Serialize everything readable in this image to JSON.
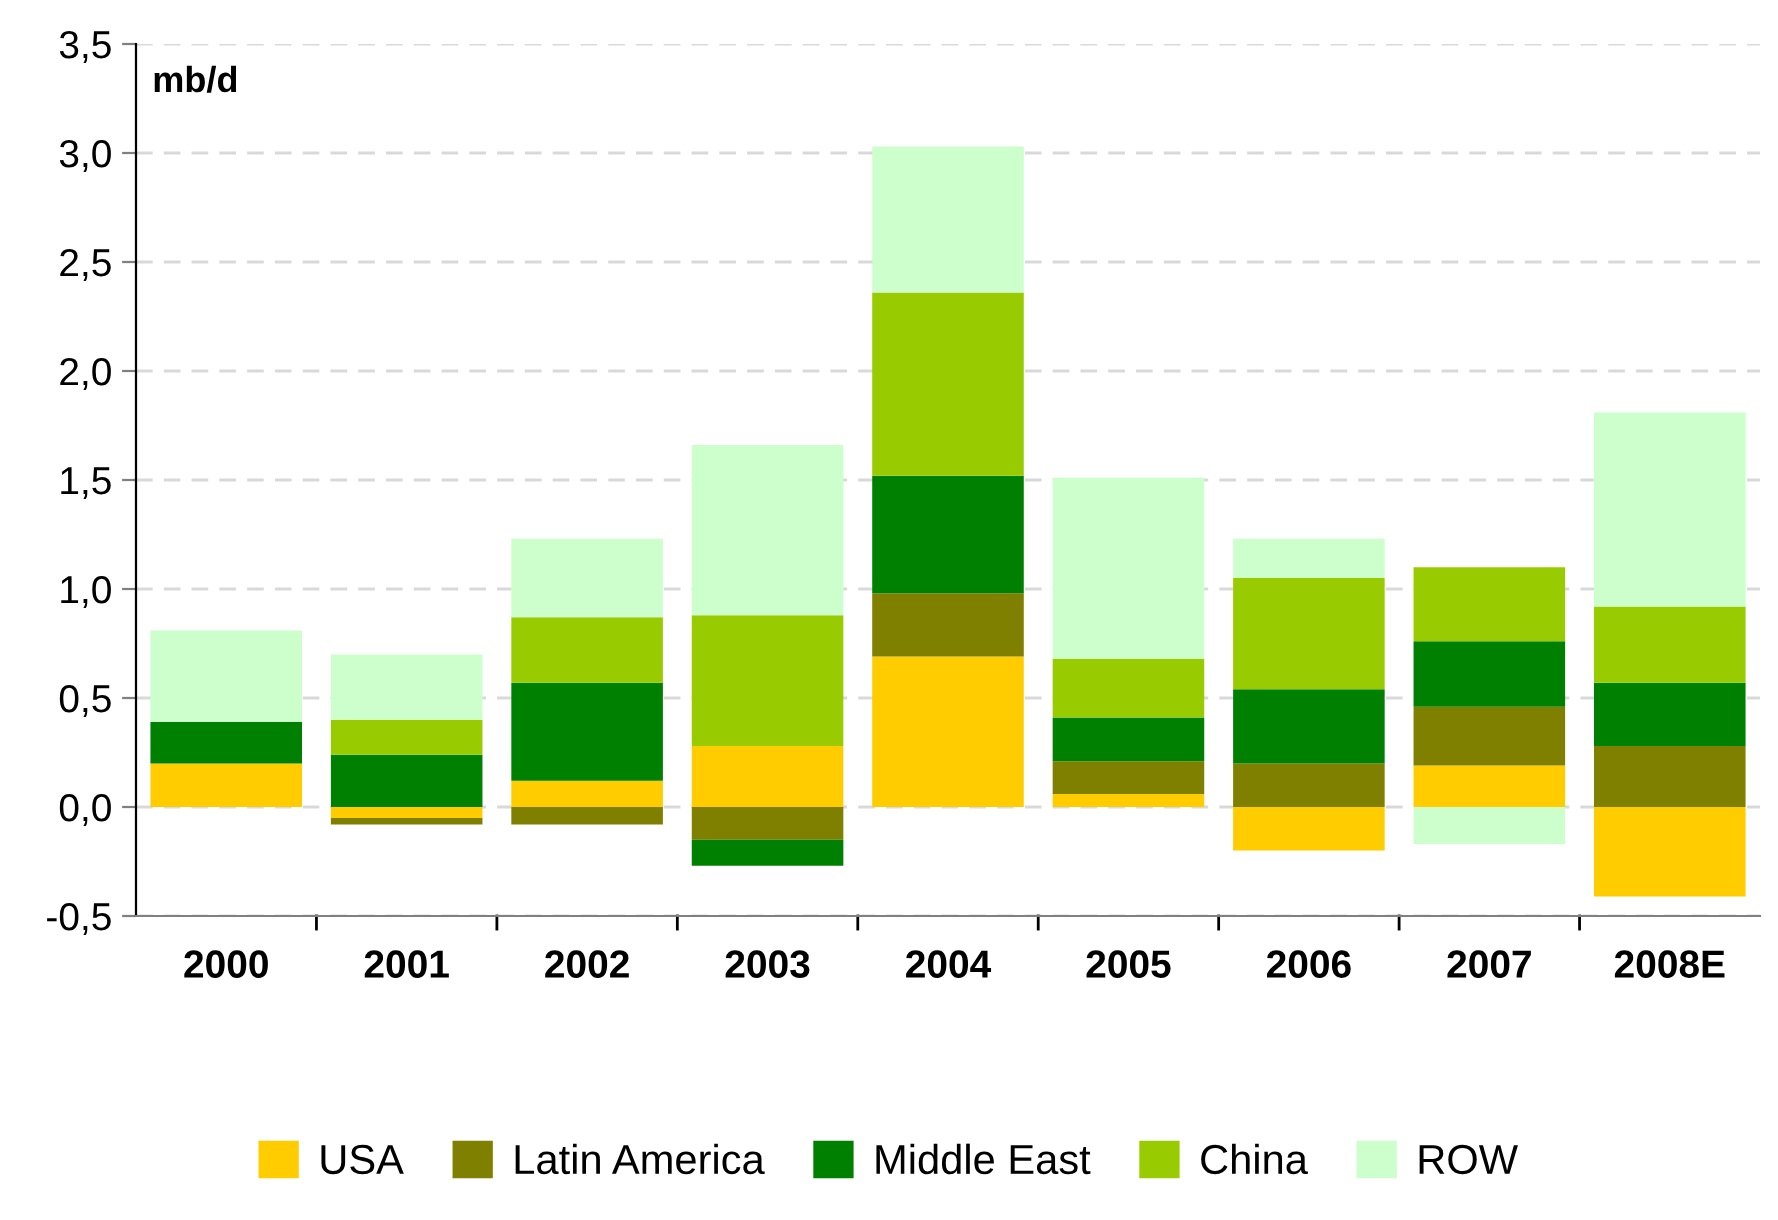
{
  "chart_data": {
    "type": "bar",
    "stacked": true,
    "ylabel": "mb/d",
    "categories": [
      "2000",
      "2001",
      "2002",
      "2003",
      "2004",
      "2005",
      "2006",
      "2007",
      "2008E"
    ],
    "series": [
      {
        "name": "USA",
        "color": "#ffcc00",
        "values": [
          0.2,
          -0.05,
          0.12,
          0.28,
          0.69,
          0.06,
          -0.2,
          0.19,
          -0.41
        ]
      },
      {
        "name": "Latin America",
        "color": "#808000",
        "values": [
          0,
          -0.03,
          -0.08,
          -0.15,
          0.29,
          0.15,
          0.2,
          0.27,
          0.28
        ]
      },
      {
        "name": "Middle East",
        "color": "#008000",
        "values": [
          0.19,
          0.24,
          0.45,
          -0.12,
          0.54,
          0.2,
          0.34,
          0.3,
          0.29
        ]
      },
      {
        "name": "China",
        "color": "#99cc00",
        "values": [
          0,
          0.16,
          0.3,
          0.6,
          0.84,
          0.27,
          0.51,
          0.34,
          0.35
        ]
      },
      {
        "name": "ROW",
        "color": "#ccffcc",
        "values": [
          0.42,
          0.3,
          0.36,
          0.78,
          0.67,
          0.83,
          0.18,
          -0.17,
          0.89
        ]
      }
    ],
    "ylim": [
      -0.5,
      3.5
    ],
    "yticks": [
      {
        "value": -0.5,
        "label": "-0,5"
      },
      {
        "value": 0,
        "label": "0,0"
      },
      {
        "value": 0.5,
        "label": "0,5"
      },
      {
        "value": 1,
        "label": "1,0"
      },
      {
        "value": 1.5,
        "label": "1,5"
      },
      {
        "value": 2,
        "label": "2,0"
      },
      {
        "value": 2.5,
        "label": "2,5"
      },
      {
        "value": 3,
        "label": "3,0"
      },
      {
        "value": 3.5,
        "label": "3,5"
      }
    ],
    "grid": "y",
    "legend": "bottom"
  }
}
